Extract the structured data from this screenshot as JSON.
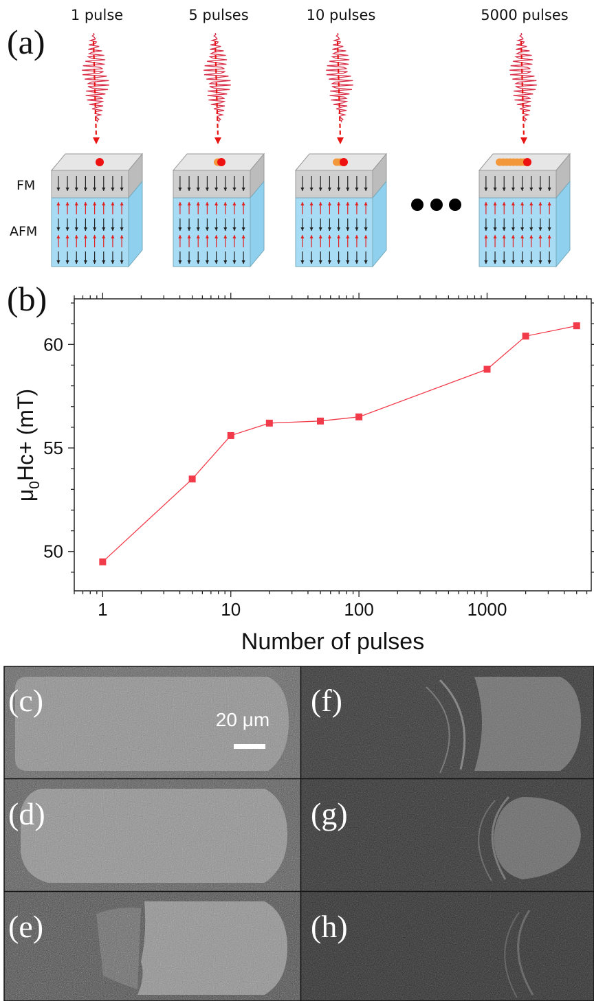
{
  "panel_letters": {
    "a": "(a)",
    "b": "(b)",
    "c": "(c)",
    "d": "(d)",
    "e": "(e)",
    "f": "(f)",
    "g": "(g)",
    "h": "(h)"
  },
  "schematic": {
    "pulse_labels": [
      "1 pulse",
      "5 pulses",
      "10 pulses",
      "5000 pulses"
    ],
    "layer_labels": {
      "fm": "FM",
      "afm": "AFM"
    },
    "burn_trail_dots": [
      0,
      1,
      2,
      8
    ],
    "colors": {
      "laser": "#d9304a",
      "spot": "#ee1111",
      "trail": "#f2973a",
      "fm_layer": "#cfcfcf",
      "afm_layer": "#a8dcf4",
      "arrow_red": "#e02020",
      "arrow_black": "#222222"
    }
  },
  "scale_bar": {
    "label": "20 μm"
  },
  "chart_data": {
    "type": "line",
    "xlabel": "Number of pulses",
    "ylabel_main": "μ",
    "ylabel_sub": "0",
    "ylabel_rest": "Hc+ (mT)",
    "x_scale": "log",
    "xlim": [
      0.6,
      6500
    ],
    "ylim": [
      48.1,
      62.2
    ],
    "x_ticks": [
      1,
      10,
      100,
      1000
    ],
    "x_tick_labels": [
      "1",
      "10",
      "100",
      "1000"
    ],
    "y_ticks": [
      50,
      55,
      60
    ],
    "y_tick_labels": [
      "50",
      "55",
      "60"
    ],
    "series": [
      {
        "x": [
          1,
          5,
          10,
          20,
          50,
          100,
          1000,
          2000,
          5000
        ],
        "y": [
          49.5,
          53.5,
          55.6,
          56.2,
          56.3,
          56.5,
          58.8,
          60.4,
          60.9
        ],
        "color": "#f23b4a",
        "marker": "square"
      }
    ],
    "grid": false
  }
}
